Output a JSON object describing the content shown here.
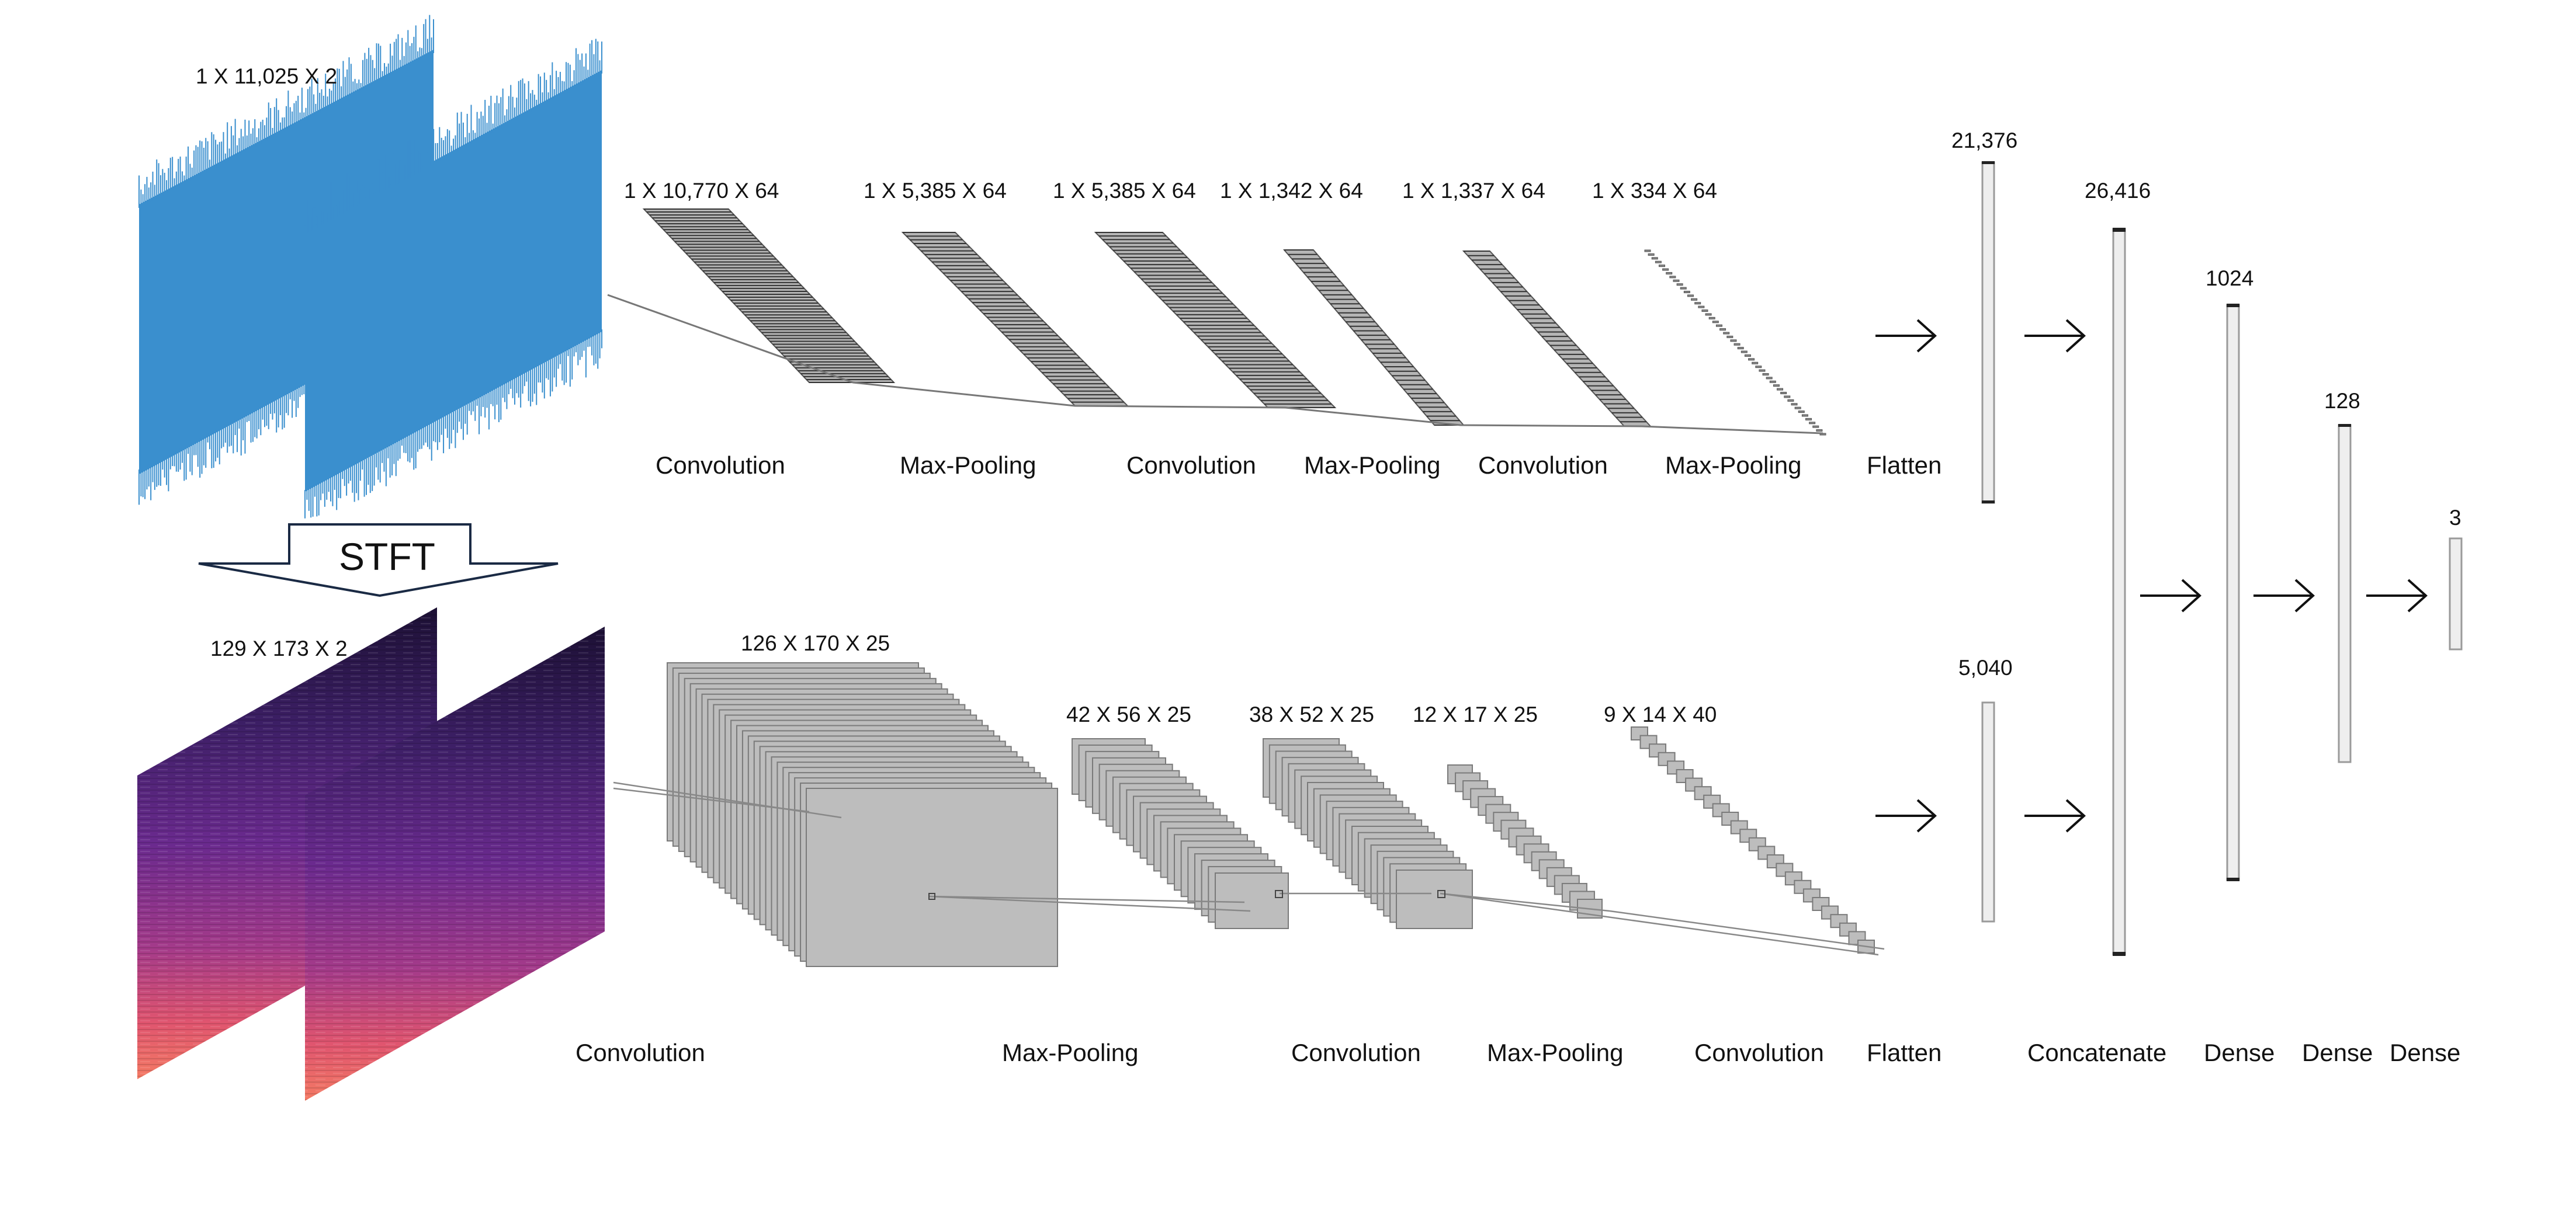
{
  "inputs": {
    "waveform_dims": "1 X 11,025 X 2",
    "spectrogram_dims": "129 X 173 X 2",
    "transform_label": "STFT"
  },
  "top_branch": {
    "stages": [
      {
        "dims": "1 X 10,770 X 64",
        "label": "Convolution"
      },
      {
        "dims": "1 X 5,385 X 64",
        "label": "Max-Pooling"
      },
      {
        "dims": "1 X 5,385 X 64",
        "label": "Convolution"
      },
      {
        "dims": "1 X 1,342 X 64",
        "label": "Max-Pooling"
      },
      {
        "dims": "1 X 1,337 X 64",
        "label": "Convolution"
      },
      {
        "dims": "1 X 334 X 64",
        "label": "Max-Pooling"
      }
    ],
    "flatten_label": "Flatten",
    "flatten_size": "21,376"
  },
  "bottom_branch": {
    "stages": [
      {
        "dims": "126 X 170 X 25",
        "label": "Convolution"
      },
      {
        "dims": "42 X 56 X 25",
        "label": "Max-Pooling"
      },
      {
        "dims": "38 X 52 X 25",
        "label": "Convolution"
      },
      {
        "dims": "12 X 17 X 25",
        "label": "Max-Pooling"
      },
      {
        "dims": "9 X 14 X 40",
        "label": "Convolution"
      }
    ],
    "flatten_label": "Flatten",
    "flatten_size": "5,040"
  },
  "head": {
    "concat_label": "Concatenate",
    "concat_size": "26,416",
    "dense": [
      {
        "label": "Dense",
        "size": "1024"
      },
      {
        "label": "Dense",
        "size": "128"
      },
      {
        "label": "Dense",
        "size": "3"
      }
    ]
  },
  "colors": {
    "waveform": "#3a8fce",
    "feature_map_fill": "#bdbdbd",
    "feature_map_edge": "#7a7a7a",
    "vector_fill": "#eeeeee",
    "vector_edge": "#9a9a9a"
  }
}
